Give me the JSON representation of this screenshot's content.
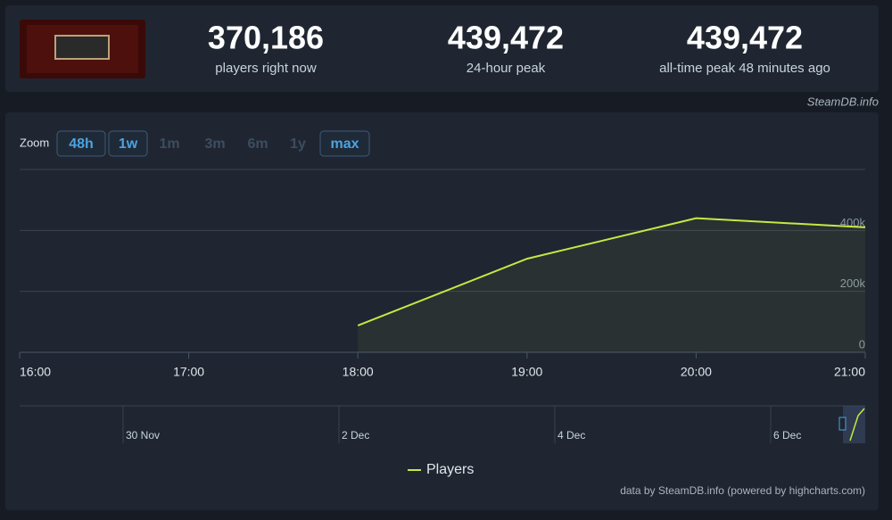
{
  "header": {
    "stats": [
      {
        "value": "370,186",
        "label": "players right now"
      },
      {
        "value": "439,472",
        "label": "24-hour peak"
      },
      {
        "value": "439,472",
        "label": "all-time peak 48 minutes ago"
      }
    ],
    "source": "SteamDB.info"
  },
  "zoom": {
    "label": "Zoom",
    "buttons": [
      "48h",
      "1w",
      "1m",
      "3m",
      "6m",
      "1y",
      "max"
    ],
    "enabled": [
      true,
      true,
      false,
      false,
      false,
      false,
      true
    ]
  },
  "chart_data": {
    "type": "line",
    "categories": [
      "16:00",
      "17:00",
      "18:00",
      "19:00",
      "20:00",
      "21:00"
    ],
    "series": [
      {
        "name": "Players",
        "color": "#c5e843",
        "values": [
          null,
          null,
          88000,
          307000,
          440000,
          410000
        ]
      }
    ],
    "ylim": [
      0,
      600000
    ],
    "yticks": [
      0,
      {
        "value": 200000,
        "label": "200k"
      },
      {
        "value": 400000,
        "label": "400k"
      }
    ],
    "grid": true,
    "navigator": {
      "labels": [
        "30 Nov",
        "2 Dec",
        "4 Dec",
        "6 Dec"
      ]
    },
    "credits": "data by SteamDB.info (powered by highcharts.com)"
  }
}
